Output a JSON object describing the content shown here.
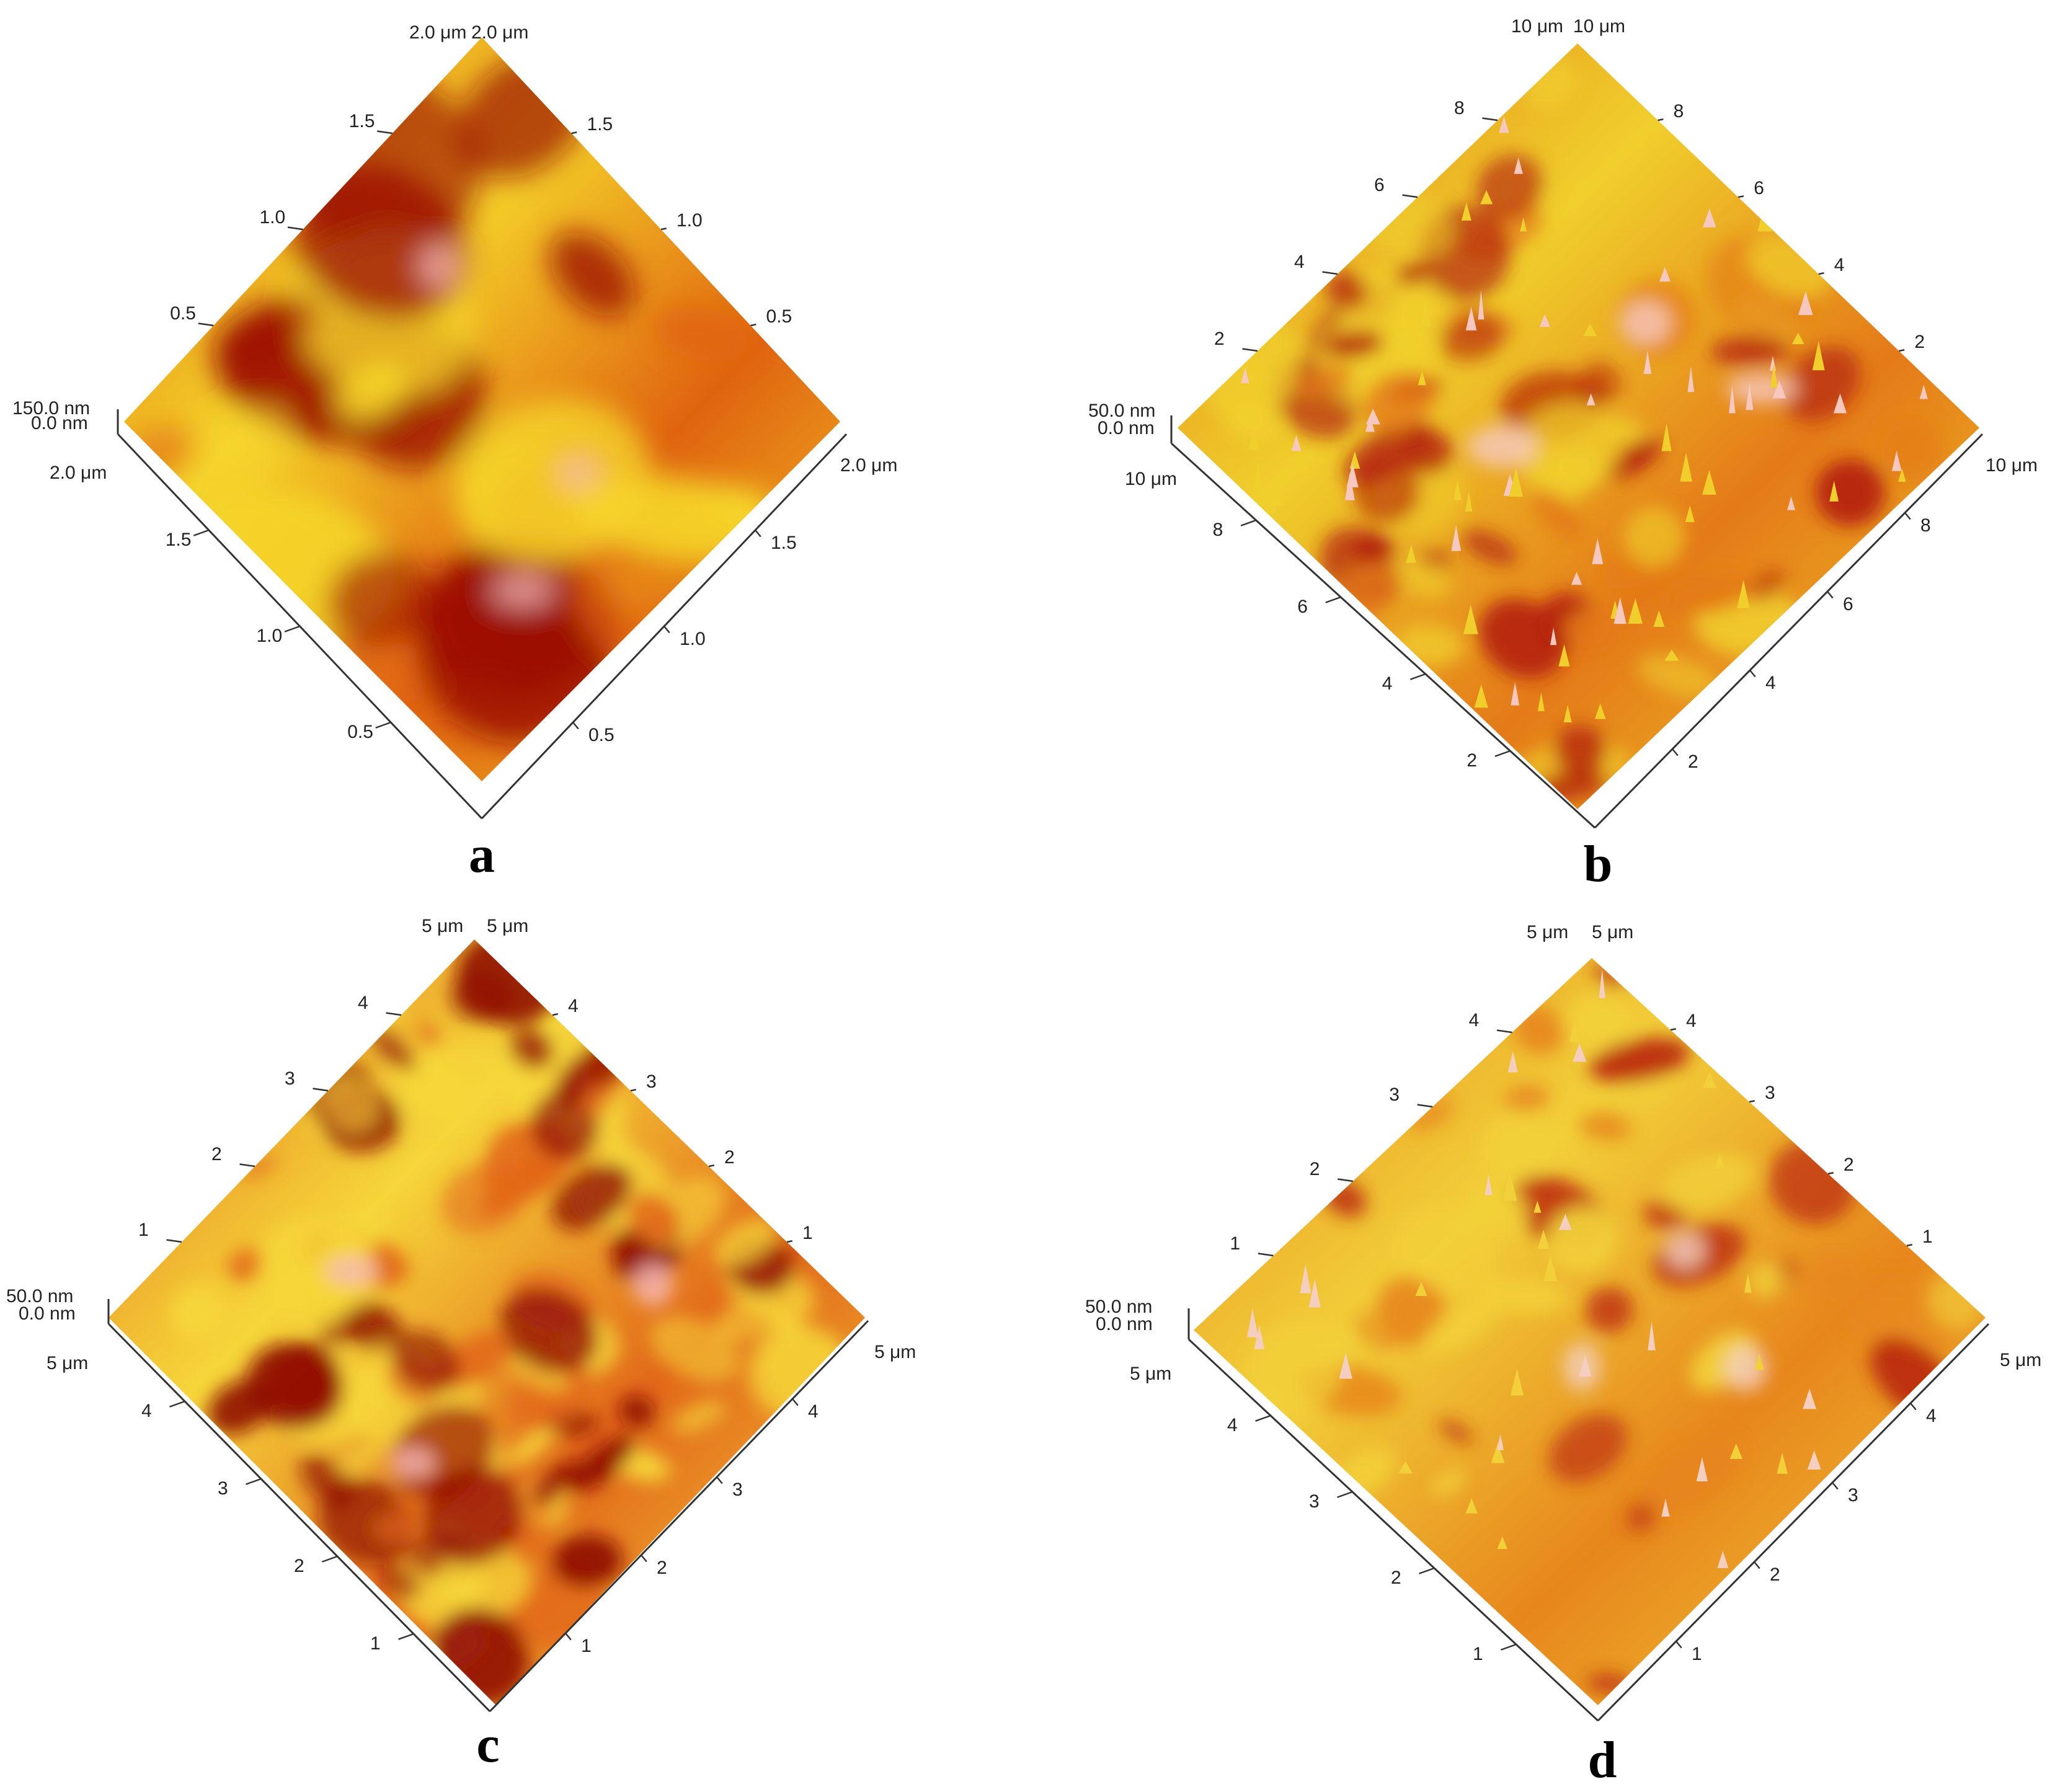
{
  "panels": [
    {
      "letter": "a",
      "top_left_unit": "2.0 μm",
      "top_right_unit": "2.0 μm",
      "left_front_unit": "2.0 μm",
      "right_front_unit": "2.0 μm",
      "z_top": "150.0 nm",
      "z_bottom": "0.0 nm",
      "ticks_back_left": [
        "0.5",
        "1.0",
        "1.5"
      ],
      "ticks_back_right": [
        "1.5",
        "1.0",
        "0.5"
      ],
      "ticks_front_left": [
        "1.5",
        "1.0",
        "0.5"
      ],
      "ticks_front_right": [
        "0.5",
        "1.0",
        "1.5"
      ],
      "colors": {
        "dark": "#9c0f05",
        "mid": "#e06410",
        "light": "#f5d52a",
        "peak": "#f6b8b8"
      }
    },
    {
      "letter": "b",
      "top_left_unit": "10 μm",
      "top_right_unit": "10 μm",
      "left_front_unit": "10 μm",
      "right_front_unit": "10 μm",
      "z_top": "50.0 nm",
      "z_bottom": "0.0 nm",
      "ticks_back_left": [
        "2",
        "4",
        "6",
        "8"
      ],
      "ticks_back_right": [
        "8",
        "6",
        "4",
        "2"
      ],
      "ticks_front_left": [
        "8",
        "6",
        "4",
        "2"
      ],
      "ticks_front_right": [
        "2",
        "4",
        "6",
        "8"
      ],
      "colors": {
        "dark": "#b3200a",
        "mid": "#e47a18",
        "light": "#f0cf2c",
        "peak": "#f6c8c0"
      }
    },
    {
      "letter": "c",
      "top_left_unit": "5 μm",
      "top_right_unit": "5 μm",
      "left_front_unit": "5 μm",
      "right_front_unit": "5 μm",
      "z_top": "50.0 nm",
      "z_bottom": "0.0 nm",
      "ticks_back_left": [
        "1",
        "2",
        "3",
        "4"
      ],
      "ticks_back_right": [
        "4",
        "3",
        "2",
        "1"
      ],
      "ticks_front_left": [
        "4",
        "3",
        "2",
        "1"
      ],
      "ticks_front_right": [
        "1",
        "2",
        "3",
        "4"
      ],
      "colors": {
        "dark": "#8f0a03",
        "mid": "#e2681a",
        "light": "#f6d63a",
        "peak": "#f7b9b9"
      }
    },
    {
      "letter": "d",
      "top_left_unit": "5 μm",
      "top_right_unit": "5 μm",
      "left_front_unit": "5 μm",
      "right_front_unit": "5 μm",
      "z_top": "50.0 nm",
      "z_bottom": "0.0 nm",
      "ticks_back_left": [
        "1",
        "2",
        "3",
        "4"
      ],
      "ticks_back_right": [
        "4",
        "3",
        "2",
        "1"
      ],
      "ticks_front_left": [
        "4",
        "3",
        "2",
        "1"
      ],
      "ticks_front_right": [
        "1",
        "2",
        "3",
        "4"
      ],
      "colors": {
        "dark": "#bb2a0c",
        "mid": "#e7861c",
        "light": "#f2d03a",
        "peak": "#f4cfc0"
      }
    }
  ]
}
